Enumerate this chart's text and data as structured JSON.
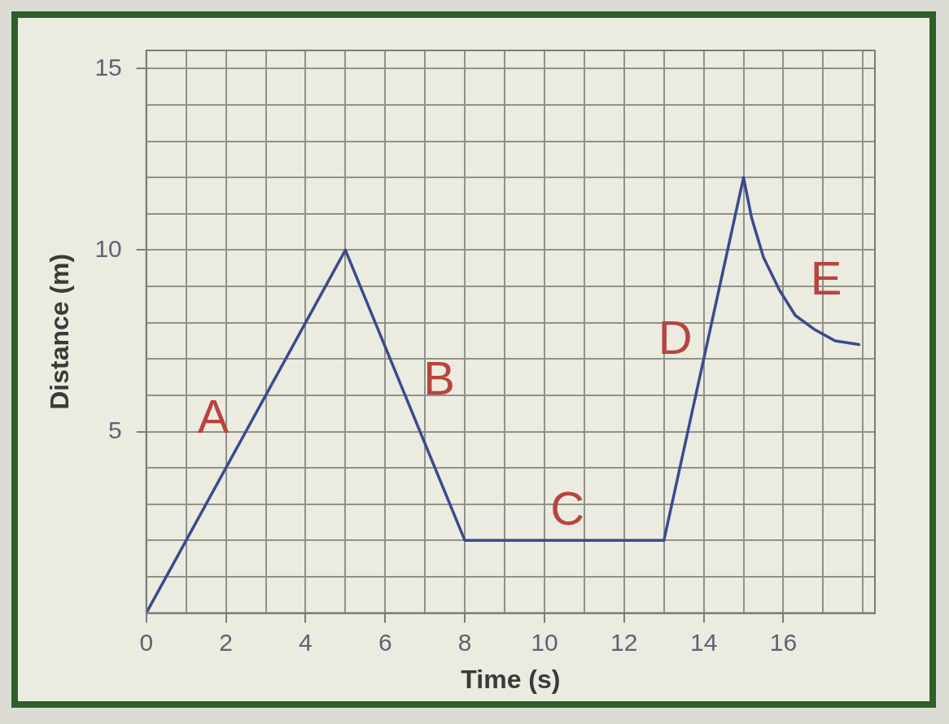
{
  "chart_data": {
    "type": "line",
    "xlabel": "Time (s)",
    "ylabel": "Distance (m)",
    "x": [
      0,
      5,
      8,
      13,
      15,
      15.2,
      15.5,
      15.9,
      16.3,
      16.8,
      17.3,
      17.9
    ],
    "values": [
      0,
      10,
      2,
      2,
      12,
      10.9,
      9.8,
      8.9,
      8.2,
      7.8,
      7.5,
      7.4
    ],
    "color": "#3b4a8f",
    "xlim": [
      0,
      18.3
    ],
    "ylim": [
      0,
      15.5
    ],
    "xticks": [
      0,
      {
        "value": 1,
        "label": null
      },
      2,
      {
        "value": 3,
        "label": null
      },
      4,
      {
        "value": 5,
        "label": null
      },
      6,
      {
        "value": 7,
        "label": null
      },
      8,
      {
        "value": 9,
        "label": null
      },
      10,
      {
        "value": 11,
        "label": null
      },
      12,
      {
        "value": 13,
        "label": null
      },
      14,
      {
        "value": 15,
        "label": null
      },
      16,
      {
        "value": 17,
        "label": null
      },
      {
        "value": 18,
        "label": null
      }
    ],
    "yticks": [
      {
        "value": 0,
        "label": null
      },
      {
        "value": 1,
        "label": null
      },
      {
        "value": 2,
        "label": null
      },
      {
        "value": 3,
        "label": null
      },
      {
        "value": 4,
        "label": null
      },
      5,
      {
        "value": 6,
        "label": null
      },
      {
        "value": 7,
        "label": null
      },
      {
        "value": 8,
        "label": null
      },
      {
        "value": 9,
        "label": null
      },
      10,
      {
        "value": 11,
        "label": null
      },
      {
        "value": 12,
        "label": null
      },
      {
        "value": 13,
        "label": null
      },
      {
        "value": 14,
        "label": null
      },
      15
    ],
    "grid": true,
    "annotations": [
      "A",
      "B",
      "C",
      "D",
      "E"
    ]
  }
}
